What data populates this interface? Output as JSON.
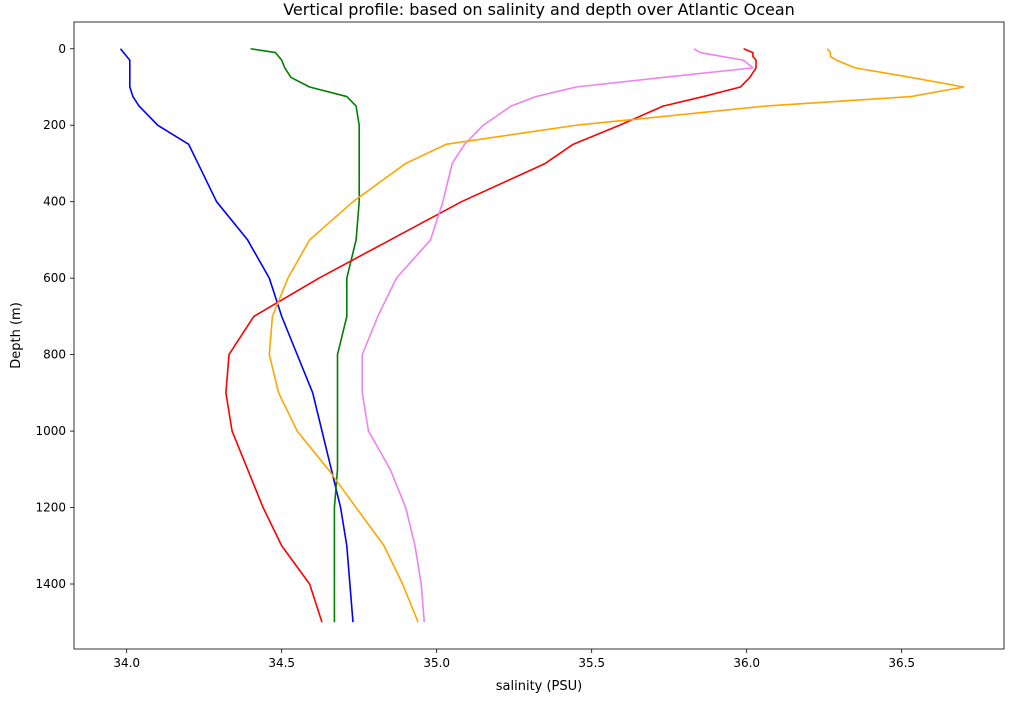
{
  "chart_data": {
    "type": "line",
    "title": "Vertical profile: based on salinity and depth over Atlantic Ocean",
    "xlabel": "salinity (PSU)",
    "ylabel": "Depth (m)",
    "xlim": [
      33.83,
      36.83
    ],
    "ylim": [
      1570,
      -70
    ],
    "y_inverted": true,
    "grid": false,
    "legend": "none",
    "xticks": [
      34.0,
      34.5,
      35.0,
      35.5,
      36.0,
      36.5
    ],
    "xtick_labels": [
      "34.0",
      "34.5",
      "35.0",
      "35.5",
      "36.0",
      "36.5"
    ],
    "yticks": [
      0,
      200,
      400,
      600,
      800,
      1000,
      1200,
      1400
    ],
    "ytick_labels": [
      "0",
      "200",
      "400",
      "600",
      "800",
      "1000",
      "1200",
      "1400"
    ],
    "series": [
      {
        "color": "#0000ff",
        "points": [
          [
            33.98,
            0
          ],
          [
            33.99,
            10
          ],
          [
            34.0,
            20
          ],
          [
            34.01,
            30
          ],
          [
            34.01,
            50
          ],
          [
            34.01,
            75
          ],
          [
            34.01,
            100
          ],
          [
            34.02,
            125
          ],
          [
            34.04,
            150
          ],
          [
            34.1,
            200
          ],
          [
            34.2,
            250
          ],
          [
            34.23,
            300
          ],
          [
            34.29,
            400
          ],
          [
            34.39,
            500
          ],
          [
            34.46,
            600
          ],
          [
            34.5,
            700
          ],
          [
            34.55,
            800
          ],
          [
            34.6,
            900
          ],
          [
            34.63,
            1000
          ],
          [
            34.66,
            1100
          ],
          [
            34.69,
            1200
          ],
          [
            34.71,
            1300
          ],
          [
            34.72,
            1400
          ],
          [
            34.73,
            1500
          ]
        ]
      },
      {
        "color": "#008000",
        "points": [
          [
            34.4,
            0
          ],
          [
            34.48,
            10
          ],
          [
            34.49,
            20
          ],
          [
            34.5,
            30
          ],
          [
            34.51,
            50
          ],
          [
            34.53,
            75
          ],
          [
            34.59,
            100
          ],
          [
            34.71,
            125
          ],
          [
            34.74,
            150
          ],
          [
            34.75,
            200
          ],
          [
            34.75,
            250
          ],
          [
            34.75,
            300
          ],
          [
            34.75,
            400
          ],
          [
            34.74,
            500
          ],
          [
            34.71,
            600
          ],
          [
            34.71,
            700
          ],
          [
            34.68,
            800
          ],
          [
            34.68,
            900
          ],
          [
            34.68,
            1000
          ],
          [
            34.68,
            1100
          ],
          [
            34.67,
            1200
          ],
          [
            34.67,
            1300
          ],
          [
            34.67,
            1400
          ],
          [
            34.67,
            1500
          ]
        ]
      },
      {
        "color": "#ff0000",
        "points": [
          [
            35.99,
            0
          ],
          [
            36.02,
            10
          ],
          [
            36.02,
            20
          ],
          [
            36.03,
            30
          ],
          [
            36.03,
            50
          ],
          [
            36.01,
            75
          ],
          [
            35.98,
            100
          ],
          [
            35.86,
            125
          ],
          [
            35.73,
            150
          ],
          [
            35.59,
            200
          ],
          [
            35.44,
            250
          ],
          [
            35.35,
            300
          ],
          [
            35.08,
            400
          ],
          [
            34.85,
            500
          ],
          [
            34.62,
            600
          ],
          [
            34.41,
            700
          ],
          [
            34.33,
            800
          ],
          [
            34.32,
            900
          ],
          [
            34.34,
            1000
          ],
          [
            34.39,
            1100
          ],
          [
            34.44,
            1200
          ],
          [
            34.5,
            1300
          ],
          [
            34.59,
            1400
          ],
          [
            34.63,
            1500
          ]
        ]
      },
      {
        "color": "#ee82ee",
        "points": [
          [
            35.83,
            0
          ],
          [
            35.85,
            10
          ],
          [
            35.92,
            20
          ],
          [
            35.99,
            30
          ],
          [
            36.02,
            50
          ],
          [
            35.73,
            75
          ],
          [
            35.45,
            100
          ],
          [
            35.32,
            125
          ],
          [
            35.24,
            150
          ],
          [
            35.15,
            200
          ],
          [
            35.09,
            250
          ],
          [
            35.05,
            300
          ],
          [
            35.02,
            400
          ],
          [
            34.98,
            500
          ],
          [
            34.87,
            600
          ],
          [
            34.81,
            700
          ],
          [
            34.76,
            800
          ],
          [
            34.76,
            900
          ],
          [
            34.78,
            1000
          ],
          [
            34.85,
            1100
          ],
          [
            34.9,
            1200
          ],
          [
            34.93,
            1300
          ],
          [
            34.95,
            1400
          ],
          [
            34.96,
            1500
          ]
        ]
      },
      {
        "color": "#ffa500",
        "points": [
          [
            36.26,
            0
          ],
          [
            36.27,
            10
          ],
          [
            36.27,
            20
          ],
          [
            36.29,
            30
          ],
          [
            36.35,
            50
          ],
          [
            36.53,
            75
          ],
          [
            36.7,
            100
          ],
          [
            36.53,
            125
          ],
          [
            36.06,
            150
          ],
          [
            35.45,
            200
          ],
          [
            35.03,
            250
          ],
          [
            34.9,
            300
          ],
          [
            34.73,
            400
          ],
          [
            34.59,
            500
          ],
          [
            34.52,
            600
          ],
          [
            34.47,
            700
          ],
          [
            34.46,
            800
          ],
          [
            34.49,
            900
          ],
          [
            34.55,
            1000
          ],
          [
            34.65,
            1100
          ],
          [
            34.74,
            1200
          ],
          [
            34.83,
            1300
          ],
          [
            34.89,
            1400
          ],
          [
            34.94,
            1500
          ]
        ]
      }
    ]
  }
}
